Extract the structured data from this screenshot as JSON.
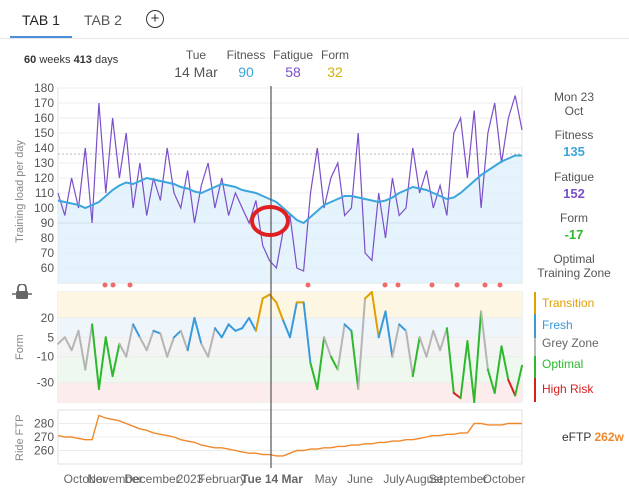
{
  "tabs": [
    {
      "label": "TAB 1",
      "active": true
    },
    {
      "label": "TAB 2",
      "active": false
    }
  ],
  "add_tab_icon": "plus-circle-icon",
  "range": {
    "weeks": "60",
    "weeks_label": "weeks",
    "days": "413",
    "days_label": "days"
  },
  "cursor": {
    "day": "Tue",
    "date": "14 Mar",
    "fitness_label": "Fitness",
    "fitness": "90",
    "fatigue_label": "Fatigue",
    "fatigue": "58",
    "form_label": "Form",
    "form": "32"
  },
  "summary": {
    "day": "Mon 23",
    "month": "Oct",
    "fitness_label": "Fitness",
    "fitness": "135",
    "fatigue_label": "Fatigue",
    "fatigue": "152",
    "form_label": "Form",
    "form": "-17",
    "zone_label": "Optimal",
    "zone_label2": "Training Zone"
  },
  "form_zones": [
    {
      "label": "Transition",
      "color": "#e0a000"
    },
    {
      "label": "Fresh",
      "color": "#3a9ad9"
    },
    {
      "label": "Grey Zone",
      "color": "#666666"
    },
    {
      "label": "Optimal",
      "color": "#2eb82e"
    },
    {
      "label": "High Risk",
      "color": "#d62020"
    }
  ],
  "eftp": {
    "label": "eFTP",
    "value": "262w"
  },
  "axis_labels": {
    "load": "Training load per day",
    "form": "Form",
    "ftp": "Ride FTP"
  },
  "x_ticks": [
    "October",
    "November",
    "December",
    "2023",
    "February",
    "Tue 14 Mar",
    "May",
    "June",
    "July",
    "August",
    "September",
    "October"
  ],
  "lock_icon": "lock-icon",
  "colors": {
    "fitness": "#3aa6dd",
    "fatigue": "#7b4fc9",
    "form": "#d4b000",
    "ftp": "#f0882a"
  },
  "chart_data": [
    {
      "type": "line",
      "name": "load",
      "ylim": [
        50,
        180
      ],
      "yticks": [
        60,
        70,
        80,
        90,
        100,
        110,
        120,
        130,
        140,
        150,
        160,
        170,
        180
      ],
      "series": [
        {
          "name": "Fitness",
          "values": [
            105,
            104,
            103,
            102,
            100,
            102,
            104,
            108,
            112,
            115,
            117,
            116,
            118,
            120,
            119,
            118,
            117,
            116,
            114,
            113,
            111,
            110,
            112,
            114,
            116,
            115,
            114,
            112,
            111,
            110,
            108,
            106,
            104,
            100,
            96,
            92,
            90,
            94,
            98,
            102,
            104,
            106,
            108,
            108,
            107,
            106,
            105,
            104,
            105,
            107,
            110,
            112,
            114,
            113,
            112,
            110,
            108,
            106,
            107,
            110,
            114,
            118,
            122,
            125,
            128,
            131,
            133,
            135,
            135
          ]
        },
        {
          "name": "Fatigue",
          "values": [
            110,
            95,
            120,
            100,
            140,
            90,
            170,
            110,
            160,
            120,
            150,
            100,
            130,
            95,
            120,
            105,
            140,
            110,
            100,
            125,
            90,
            115,
            130,
            100,
            120,
            95,
            110,
            100,
            90,
            105,
            75,
            65,
            60,
            85,
            95,
            60,
            58,
            110,
            140,
            100,
            120,
            130,
            95,
            100,
            150,
            70,
            65,
            110,
            80,
            120,
            95,
            100,
            140,
            110,
            125,
            100,
            115,
            95,
            150,
            160,
            120,
            165,
            100,
            150,
            170,
            130,
            160,
            175,
            152
          ]
        }
      ]
    },
    {
      "type": "line",
      "name": "form",
      "ylim": [
        -45,
        40
      ],
      "yticks": [
        20,
        5,
        -10,
        -30
      ],
      "series": [
        {
          "name": "Form",
          "values": [
            0,
            5,
            -5,
            10,
            -20,
            15,
            -35,
            5,
            -25,
            0,
            -10,
            15,
            5,
            -5,
            10,
            8,
            -10,
            5,
            10,
            -5,
            20,
            0,
            -10,
            12,
            5,
            15,
            10,
            12,
            20,
            10,
            35,
            38,
            32,
            18,
            5,
            32,
            32,
            -15,
            -35,
            5,
            -10,
            -20,
            15,
            10,
            -35,
            35,
            40,
            5,
            25,
            -10,
            15,
            10,
            -25,
            5,
            -10,
            10,
            -5,
            12,
            -38,
            -42,
            2,
            -45,
            25,
            -20,
            -38,
            -2,
            -28,
            -40,
            -17
          ]
        }
      ]
    },
    {
      "type": "line",
      "name": "eFTP",
      "ylim": [
        250,
        290
      ],
      "yticks": [
        260,
        270,
        280
      ],
      "series": [
        {
          "name": "Ride FTP",
          "values": [
            271,
            270,
            270,
            269,
            268,
            268,
            286,
            284,
            283,
            282,
            280,
            278,
            276,
            275,
            273,
            272,
            271,
            270,
            268,
            267,
            266,
            264,
            263,
            262,
            262,
            261,
            260,
            259,
            258,
            258,
            257,
            257,
            256,
            256,
            258,
            260,
            260,
            261,
            261,
            262,
            262,
            263,
            263,
            264,
            264,
            265,
            265,
            266,
            266,
            267,
            267,
            268,
            268,
            269,
            270,
            271,
            271,
            272,
            272,
            273,
            273,
            280,
            280,
            279,
            279,
            279,
            280,
            280,
            280
          ]
        }
      ]
    }
  ]
}
